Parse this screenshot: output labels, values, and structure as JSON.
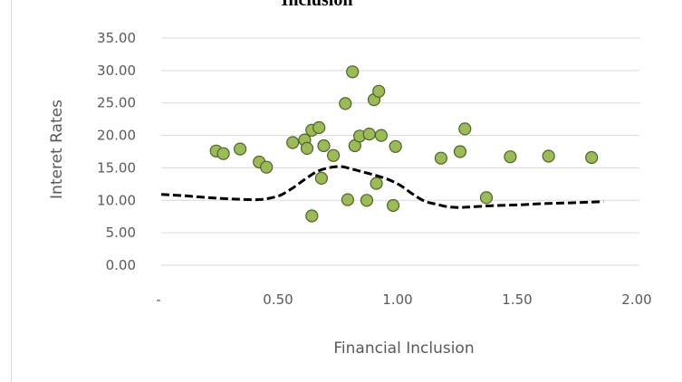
{
  "chart_data": {
    "type": "scatter",
    "title": "Inclusion",
    "xlabel": "Financial Inclusion",
    "ylabel": "Interet Rates",
    "xlim": [
      0,
      2
    ],
    "ylim": [
      0,
      35
    ],
    "x_ticks": [
      "-",
      "0.50",
      "1.00",
      "1.50",
      "2.00"
    ],
    "y_ticks": [
      "0.00",
      "5.00",
      "10.00",
      "15.00",
      "20.00",
      "25.00",
      "30.00",
      "35.00"
    ],
    "grid": "horizontal",
    "legend": "none",
    "colors": {
      "marker_fill": "#9bbb59",
      "marker_stroke": "#4f6228",
      "trend": "#000000"
    },
    "series": [
      {
        "type": "scatter",
        "x": [
          0.23,
          0.26,
          0.33,
          0.41,
          0.44,
          0.55,
          0.6,
          0.61,
          0.63,
          0.63,
          0.66,
          0.67,
          0.68,
          0.72,
          0.77,
          0.78,
          0.8,
          0.81,
          0.83,
          0.86,
          0.87,
          0.89,
          0.9,
          0.91,
          0.92,
          0.97,
          0.98,
          1.17,
          1.25,
          1.27,
          1.36,
          1.46,
          1.62,
          1.8
        ],
        "y": [
          17.6,
          17.2,
          17.9,
          15.9,
          15.1,
          18.9,
          19.3,
          18.0,
          20.8,
          7.6,
          21.2,
          13.4,
          18.4,
          16.9,
          24.9,
          10.1,
          29.8,
          18.4,
          19.9,
          10.0,
          20.2,
          25.5,
          12.6,
          26.8,
          20.0,
          9.2,
          18.3,
          16.5,
          17.5,
          21.0,
          10.4,
          16.7,
          16.8,
          16.6
        ]
      },
      {
        "type": "line",
        "style": "dashed",
        "x": [
          0.0,
          0.1,
          0.2,
          0.3,
          0.4,
          0.45,
          0.5,
          0.55,
          0.6,
          0.65,
          0.7,
          0.75,
          0.8,
          0.85,
          0.9,
          0.95,
          1.0,
          1.05,
          1.1,
          1.15,
          1.2,
          1.25,
          1.3,
          1.4,
          1.5,
          1.6,
          1.7,
          1.85
        ],
        "y": [
          10.9,
          10.7,
          10.4,
          10.2,
          10.1,
          10.3,
          10.8,
          11.9,
          13.2,
          14.4,
          15.0,
          15.2,
          14.8,
          14.3,
          13.8,
          13.2,
          12.3,
          11.0,
          9.9,
          9.4,
          9.0,
          8.9,
          9.0,
          9.2,
          9.3,
          9.5,
          9.6,
          9.8
        ]
      }
    ]
  }
}
